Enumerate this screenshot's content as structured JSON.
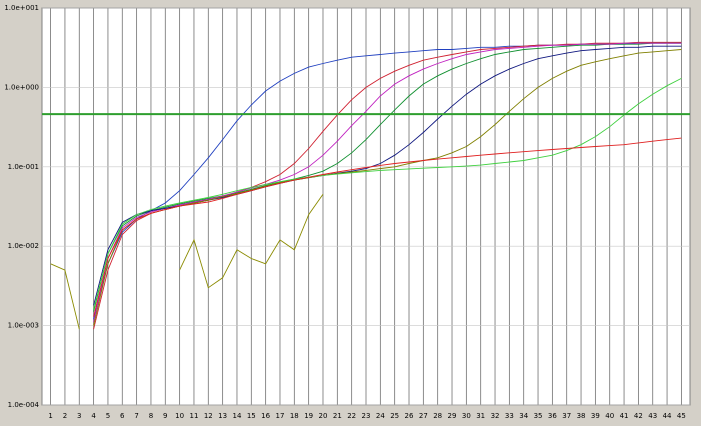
{
  "chart_data": {
    "type": "line",
    "log_y": true,
    "grid": true,
    "x": [
      1,
      2,
      3,
      4,
      5,
      6,
      7,
      8,
      9,
      10,
      11,
      12,
      13,
      14,
      15,
      16,
      17,
      18,
      19,
      20,
      21,
      22,
      23,
      24,
      25,
      26,
      27,
      28,
      29,
      30,
      31,
      32,
      33,
      34,
      35,
      36,
      37,
      38,
      39,
      40,
      41,
      42,
      43,
      44,
      45
    ],
    "xlim": [
      0.4,
      45.6
    ],
    "xticks": [
      1,
      2,
      3,
      4,
      5,
      6,
      7,
      8,
      9,
      10,
      11,
      12,
      13,
      14,
      15,
      16,
      17,
      18,
      19,
      20,
      21,
      22,
      23,
      24,
      25,
      26,
      27,
      28,
      29,
      30,
      31,
      32,
      33,
      34,
      35,
      36,
      37,
      38,
      39,
      40,
      41,
      42,
      43,
      44,
      45
    ],
    "ylim": [
      0.0001,
      10
    ],
    "yticks": [
      {
        "value": 10,
        "label": "1.0e+001"
      },
      {
        "value": 1,
        "label": "1.0e+000"
      },
      {
        "value": 0.1,
        "label": "1.0e-001"
      },
      {
        "value": 0.01,
        "label": "1.0e-002"
      },
      {
        "value": 0.001,
        "label": "1.0e-003"
      },
      {
        "value": 0.0001,
        "label": "1.0e-004"
      }
    ],
    "threshold": {
      "value": 0.46,
      "color": "#2e9e2e"
    },
    "series": [
      {
        "color": "#2040c0",
        "values": [
          null,
          null,
          null,
          0.0012,
          0.006,
          0.015,
          0.022,
          0.028,
          0.035,
          0.05,
          0.08,
          0.13,
          0.22,
          0.38,
          0.6,
          0.9,
          1.2,
          1.5,
          1.8,
          2.0,
          2.2,
          2.4,
          2.5,
          2.6,
          2.7,
          2.8,
          2.9,
          3.0,
          3.0,
          3.1,
          3.2,
          3.2,
          3.3,
          3.3,
          3.4,
          3.4,
          3.4,
          3.5,
          3.5,
          3.5,
          3.5,
          3.6,
          3.6,
          3.6,
          3.6
        ]
      },
      {
        "color": "#d02030",
        "values": [
          null,
          null,
          null,
          0.0009,
          0.005,
          0.014,
          0.021,
          0.026,
          0.029,
          0.032,
          0.035,
          0.038,
          0.042,
          0.048,
          0.055,
          0.065,
          0.08,
          0.11,
          0.17,
          0.28,
          0.45,
          0.7,
          1.0,
          1.3,
          1.6,
          1.9,
          2.2,
          2.4,
          2.6,
          2.8,
          3.0,
          3.1,
          3.2,
          3.3,
          3.4,
          3.4,
          3.5,
          3.5,
          3.6,
          3.6,
          3.6,
          3.7,
          3.7,
          3.7,
          3.7
        ]
      },
      {
        "color": "#109030",
        "values": [
          null,
          null,
          null,
          0.0015,
          0.008,
          0.018,
          0.024,
          0.028,
          0.031,
          0.034,
          0.037,
          0.04,
          0.043,
          0.047,
          0.052,
          0.058,
          0.064,
          0.07,
          0.078,
          0.088,
          0.11,
          0.15,
          0.22,
          0.34,
          0.52,
          0.78,
          1.1,
          1.4,
          1.7,
          2.0,
          2.3,
          2.6,
          2.8,
          3.0,
          3.1,
          3.2,
          3.3,
          3.4,
          3.4,
          3.5,
          3.5,
          3.5,
          3.6,
          3.6,
          3.6
        ]
      },
      {
        "color": "#c020c0",
        "values": [
          null,
          null,
          null,
          0.0011,
          0.007,
          0.017,
          0.023,
          0.027,
          0.03,
          0.033,
          0.036,
          0.039,
          0.043,
          0.048,
          0.054,
          0.06,
          0.068,
          0.08,
          0.1,
          0.14,
          0.21,
          0.33,
          0.5,
          0.78,
          1.1,
          1.4,
          1.7,
          2.0,
          2.3,
          2.6,
          2.8,
          3.0,
          3.1,
          3.2,
          3.3,
          3.4,
          3.4,
          3.5,
          3.5,
          3.5,
          3.6,
          3.6,
          3.6,
          3.6,
          3.6
        ]
      },
      {
        "color": "#101880",
        "values": [
          null,
          null,
          null,
          0.0018,
          0.009,
          0.02,
          0.025,
          0.028,
          0.03,
          0.032,
          0.035,
          0.038,
          0.041,
          0.045,
          0.05,
          0.056,
          0.062,
          0.068,
          0.073,
          0.078,
          0.083,
          0.088,
          0.095,
          0.11,
          0.14,
          0.19,
          0.27,
          0.4,
          0.58,
          0.82,
          1.1,
          1.4,
          1.7,
          2.0,
          2.3,
          2.5,
          2.7,
          2.9,
          3.0,
          3.1,
          3.2,
          3.2,
          3.3,
          3.3,
          3.3
        ]
      },
      {
        "color": "#808000",
        "values": [
          null,
          null,
          null,
          0.001,
          0.006,
          0.016,
          0.022,
          0.026,
          0.029,
          0.032,
          0.035,
          0.038,
          0.042,
          0.046,
          0.051,
          0.057,
          0.063,
          0.068,
          0.073,
          0.078,
          0.082,
          0.086,
          0.09,
          0.095,
          0.1,
          0.11,
          0.12,
          0.13,
          0.15,
          0.18,
          0.24,
          0.34,
          0.5,
          0.72,
          1.0,
          1.3,
          1.6,
          1.9,
          2.1,
          2.3,
          2.5,
          2.7,
          2.8,
          2.9,
          3.0
        ]
      },
      {
        "color": "#40d040",
        "values": [
          null,
          null,
          null,
          0.0016,
          0.008,
          0.019,
          0.025,
          0.029,
          0.032,
          0.035,
          0.038,
          0.041,
          0.045,
          0.05,
          0.055,
          0.06,
          0.065,
          0.07,
          0.074,
          0.078,
          0.081,
          0.084,
          0.087,
          0.09,
          0.092,
          0.094,
          0.096,
          0.098,
          0.1,
          0.102,
          0.105,
          0.11,
          0.115,
          0.12,
          0.13,
          0.14,
          0.16,
          0.19,
          0.24,
          0.32,
          0.45,
          0.62,
          0.82,
          1.05,
          1.3
        ]
      },
      {
        "color": "#e02020",
        "values": [
          null,
          null,
          null,
          0.0013,
          0.007,
          0.016,
          0.022,
          0.026,
          0.029,
          0.032,
          0.034,
          0.036,
          0.04,
          0.045,
          0.05,
          0.056,
          0.062,
          0.068,
          0.074,
          0.08,
          0.086,
          0.092,
          0.098,
          0.104,
          0.11,
          0.115,
          0.12,
          0.125,
          0.13,
          0.135,
          0.14,
          0.145,
          0.15,
          0.155,
          0.16,
          0.165,
          0.17,
          0.175,
          0.18,
          0.185,
          0.19,
          0.2,
          0.21,
          0.22,
          0.23
        ]
      },
      {
        "color": "#8b8b00",
        "values": [
          0.006,
          0.005,
          0.0009,
          null,
          null,
          null,
          null,
          null,
          null,
          0.005,
          0.012,
          0.003,
          0.004,
          0.009,
          0.007,
          0.006,
          0.012,
          0.009,
          0.025,
          0.045,
          null,
          null,
          null,
          null,
          null,
          null,
          null,
          null,
          null,
          null,
          null,
          null,
          null,
          null,
          null,
          null,
          null,
          null,
          null,
          null,
          null,
          null,
          null,
          null,
          null
        ]
      }
    ]
  }
}
